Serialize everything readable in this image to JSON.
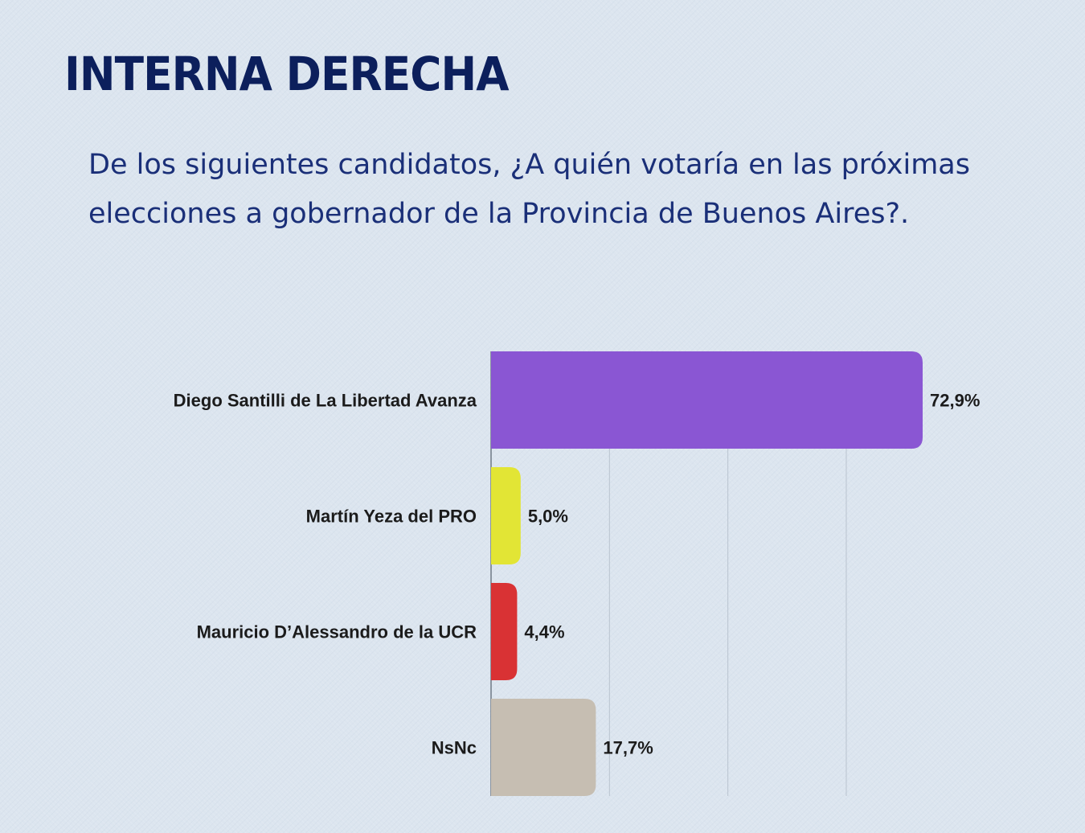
{
  "title": "INTERNA DERECHA",
  "subtitle": "De los siguientes candidatos, ¿A quién votaría en las próximas elecciones a gobernador de la Provincia de Buenos Aires?.",
  "chart_data": {
    "type": "bar",
    "orientation": "horizontal",
    "categories": [
      "Diego Santilli de La Libertad Avanza",
      "Martín Yeza del PRO",
      "Mauricio D’Alessandro de la UCR",
      "NsNc"
    ],
    "values": [
      72.9,
      5.0,
      4.4,
      17.7
    ],
    "value_labels": [
      "72,9%",
      "5,0%",
      "4,4%",
      "17,7%"
    ],
    "colors": [
      "#8a56d3",
      "#e2e535",
      "#d93234",
      "#c6beb2"
    ],
    "xlim": [
      0,
      80
    ],
    "grid": true,
    "legend": "none"
  }
}
